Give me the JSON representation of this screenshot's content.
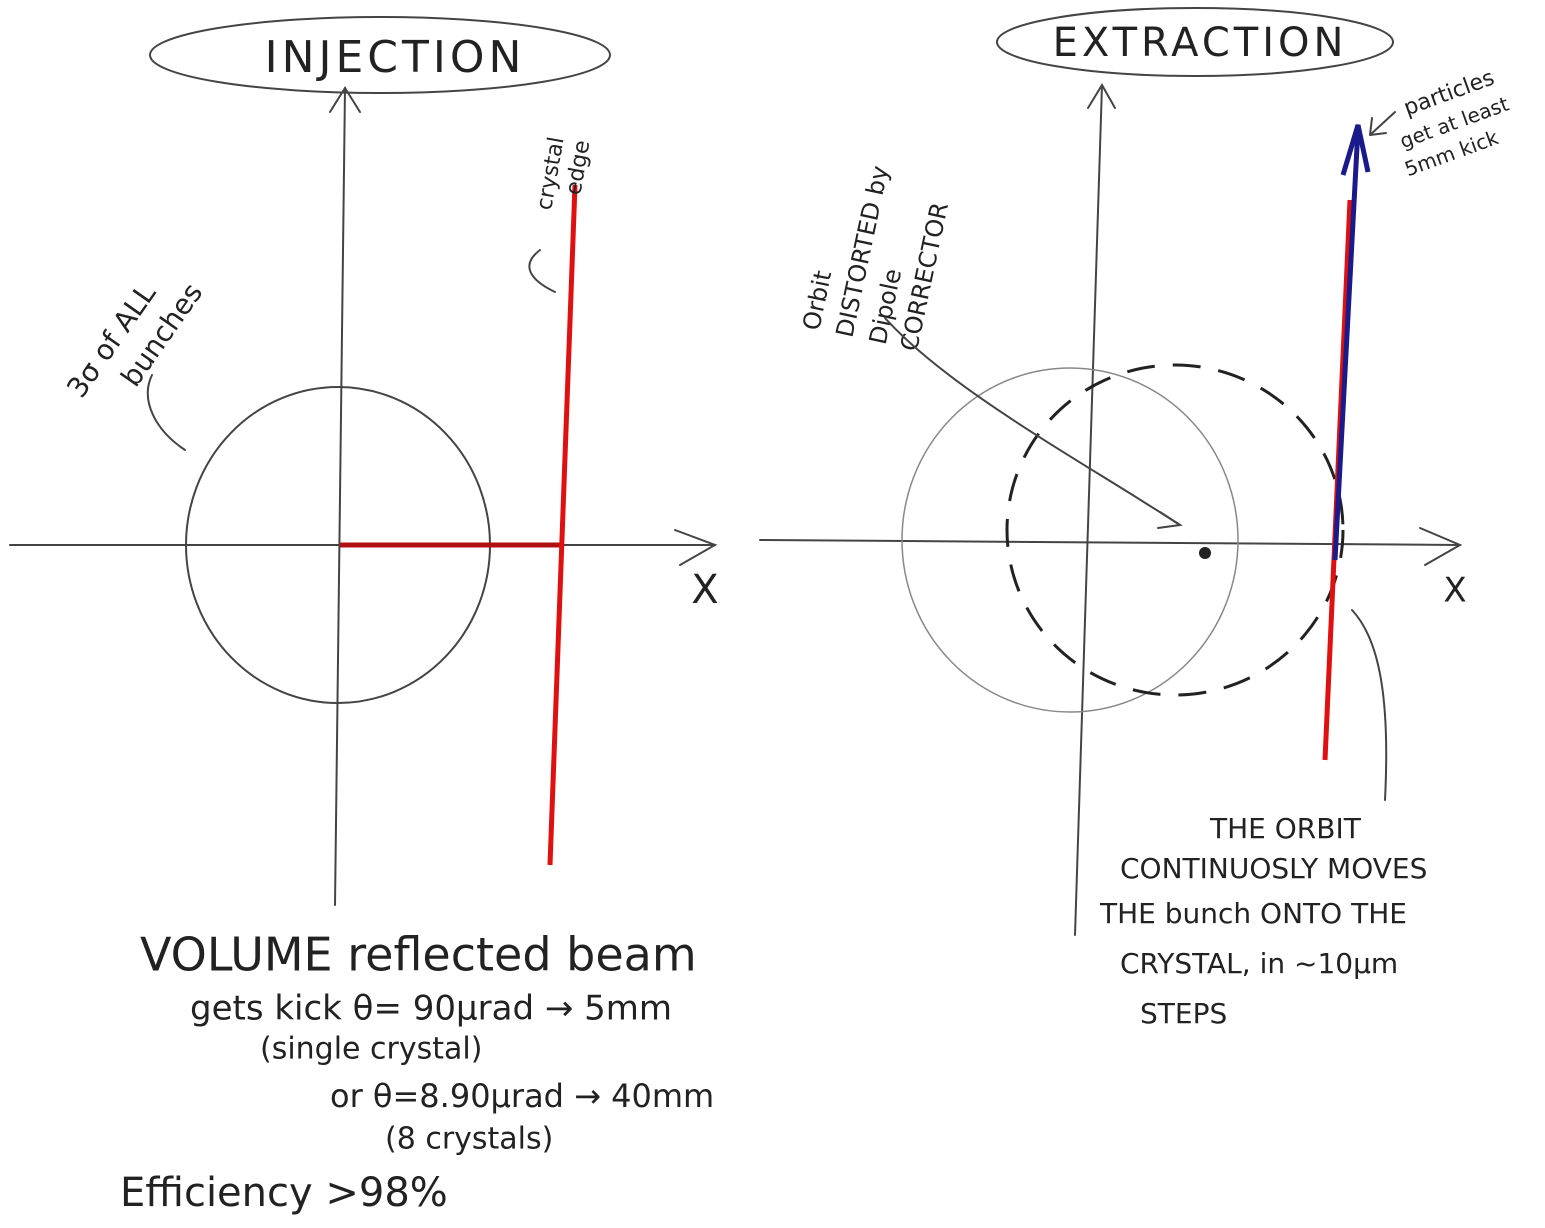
{
  "left": {
    "title": "INJECTION",
    "crystal_label": [
      "crystal",
      "edge"
    ],
    "beam_label": [
      "3σ of ALL",
      "bunches"
    ],
    "axis_label": "X"
  },
  "right": {
    "title": "EXTRACTION",
    "orbit_label": [
      "Orbit",
      "DISTORTED by",
      "Dipole",
      "CORRECTOR"
    ],
    "particles_label": [
      "particles",
      "get at least",
      "5mm kick"
    ],
    "axis_label": "X",
    "note": [
      "THE ORBIT",
      "CONTINUOSLY MOVES",
      "THE bunch ONTO THE",
      "CRYSTAL, in ~10μm",
      "STEPS"
    ]
  },
  "bottom": [
    "VOLUME reflected beam",
    "gets kick  θ= 90μrad → 5mm",
    "(single crystal)",
    "or   θ=8.90μrad → 40mm",
    "(8 crystals)",
    "Efficiency >98%"
  ]
}
